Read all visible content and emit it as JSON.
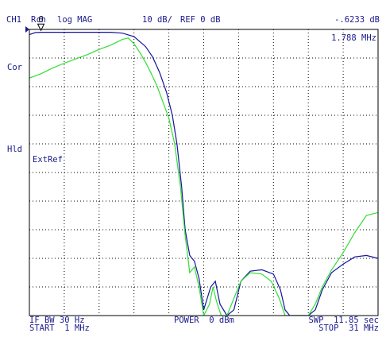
{
  "header": {
    "channel": "CH1",
    "parameter": "Rch",
    "format": "log MAG",
    "scale": "10 dB/",
    "reference": "REF 0 dB",
    "marker_value": "-.6233 dB",
    "marker_freq": "1.788 MHz"
  },
  "side_labels": {
    "cor": "Cor",
    "hld": "Hld"
  },
  "annotation": "ExtRef",
  "marker_label": "0",
  "footer": {
    "if_bw": "IF BW 30 Hz",
    "start": "START  1 MHz",
    "power": "POWER  0 dBm",
    "sweep": "SWP  11.85 sec",
    "stop": "STOP  31 MHz"
  },
  "colors": {
    "background": "#ffffff",
    "text": "#1a1a8c",
    "frame": "#000000",
    "grid": "#000000",
    "trace1": "#1414a0",
    "trace2": "#33dd33",
    "ref_marker": "#1a1a8c"
  },
  "chart_data": {
    "type": "line",
    "xlabel": "",
    "ylabel": "",
    "title": "",
    "xlim": [
      1,
      31
    ],
    "ylim": [
      -100,
      0
    ],
    "x_unit": "MHz",
    "y_unit": "dB",
    "grid": true,
    "marker": {
      "x": 1.788,
      "y": -0.6233,
      "label": "0"
    },
    "series": [
      {
        "points": [
          [
            1.0,
            -1.8
          ],
          [
            1.5,
            -1.1
          ],
          [
            2.0,
            -1.0
          ],
          [
            3.0,
            -1.0
          ],
          [
            4.0,
            -1.0
          ],
          [
            5.0,
            -1.0
          ],
          [
            6.0,
            -1.0
          ],
          [
            7.0,
            -1.0
          ],
          [
            8.0,
            -1.0
          ],
          [
            9.0,
            -1.3
          ],
          [
            10.0,
            -2.5
          ],
          [
            11.0,
            -6.0
          ],
          [
            11.6,
            -9.6
          ],
          [
            12.2,
            -15.0
          ],
          [
            12.8,
            -22.0
          ],
          [
            13.3,
            -30.0
          ],
          [
            13.7,
            -40.0
          ],
          [
            14.1,
            -55.0
          ],
          [
            14.4,
            -70.0
          ],
          [
            14.8,
            -79.0
          ],
          [
            15.2,
            -81.0
          ],
          [
            15.6,
            -87.0
          ],
          [
            16.0,
            -98.0
          ],
          [
            16.6,
            -90.0
          ],
          [
            17.0,
            -88.0
          ],
          [
            17.4,
            -96.0
          ],
          [
            18.0,
            -100.0
          ],
          [
            18.6,
            -98.0
          ],
          [
            19.2,
            -88.0
          ],
          [
            20.0,
            -84.5
          ],
          [
            21.0,
            -84.0
          ],
          [
            22.0,
            -85.5
          ],
          [
            22.6,
            -91.0
          ],
          [
            23.0,
            -98.0
          ],
          [
            23.4,
            -100.0
          ],
          [
            25.0,
            -100.0
          ],
          [
            25.6,
            -98.0
          ],
          [
            26.2,
            -91.0
          ],
          [
            27.0,
            -85.0
          ],
          [
            28.0,
            -82.0
          ],
          [
            29.0,
            -79.5
          ],
          [
            30.0,
            -79.0
          ],
          [
            31.0,
            -80.0
          ]
        ]
      },
      {
        "points": [
          [
            1.0,
            -17.0
          ],
          [
            2.0,
            -15.5
          ],
          [
            3.0,
            -13.5
          ],
          [
            4.0,
            -11.8
          ],
          [
            5.0,
            -10.3
          ],
          [
            6.0,
            -8.8
          ],
          [
            7.0,
            -7.0
          ],
          [
            8.0,
            -5.5
          ],
          [
            9.0,
            -3.5
          ],
          [
            9.5,
            -3.0
          ],
          [
            10.0,
            -5.0
          ],
          [
            10.5,
            -8.0
          ],
          [
            11.0,
            -11.5
          ],
          [
            11.5,
            -15.5
          ],
          [
            12.0,
            -20.0
          ],
          [
            12.5,
            -25.5
          ],
          [
            13.0,
            -31.0
          ],
          [
            13.5,
            -40.0
          ],
          [
            14.0,
            -55.0
          ],
          [
            14.4,
            -72.0
          ],
          [
            14.8,
            -85.0
          ],
          [
            15.2,
            -83.0
          ],
          [
            15.6,
            -90.0
          ],
          [
            16.0,
            -100.0
          ],
          [
            16.5,
            -96.0
          ],
          [
            16.8,
            -90.0
          ],
          [
            17.1,
            -95.0
          ],
          [
            17.5,
            -100.0
          ],
          [
            18.0,
            -100.0
          ],
          [
            18.6,
            -94.0
          ],
          [
            19.2,
            -88.0
          ],
          [
            20.0,
            -85.0
          ],
          [
            21.0,
            -85.5
          ],
          [
            21.8,
            -88.0
          ],
          [
            22.5,
            -94.0
          ],
          [
            23.0,
            -100.0
          ],
          [
            25.0,
            -100.0
          ],
          [
            25.6,
            -96.0
          ],
          [
            26.2,
            -90.0
          ],
          [
            27.0,
            -84.0
          ],
          [
            28.0,
            -78.0
          ],
          [
            29.0,
            -71.0
          ],
          [
            30.0,
            -65.0
          ],
          [
            31.0,
            -64.0
          ]
        ]
      }
    ]
  }
}
